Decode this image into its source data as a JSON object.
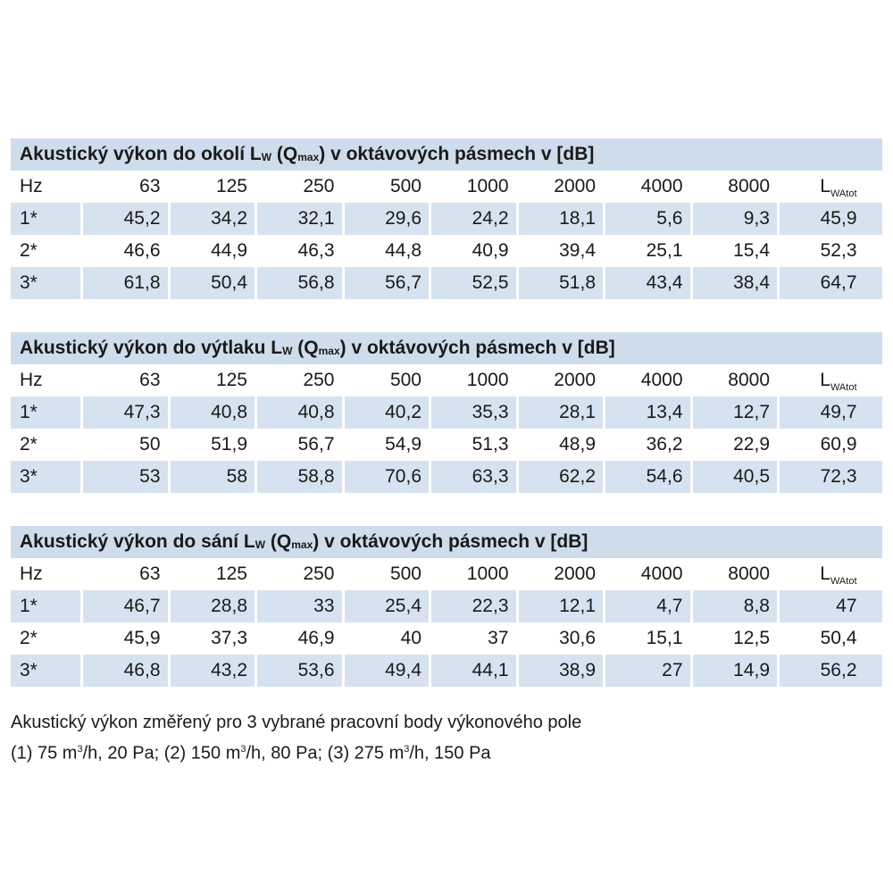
{
  "tables": [
    {
      "title_pre": "Akustický výkon do okolí L",
      "title_sub1": "W",
      "title_mid": " (Q",
      "title_sub2": "max",
      "title_post": ") v oktávových pásmech v [dB]",
      "header": [
        "Hz",
        "63",
        "125",
        "250",
        "500",
        "1000",
        "2000",
        "4000",
        "8000"
      ],
      "header_last_main": "L",
      "header_last_sub": "WAtot",
      "rows": [
        [
          "1*",
          "45,2",
          "34,2",
          "32,1",
          "29,6",
          "24,2",
          "18,1",
          "5,6",
          "9,3",
          "45,9"
        ],
        [
          "2*",
          "46,6",
          "44,9",
          "46,3",
          "44,8",
          "40,9",
          "39,4",
          "25,1",
          "15,4",
          "52,3"
        ],
        [
          "3*",
          "61,8",
          "50,4",
          "56,8",
          "56,7",
          "52,5",
          "51,8",
          "43,4",
          "38,4",
          "64,7"
        ]
      ]
    },
    {
      "title_pre": "Akustický výkon do výtlaku L",
      "title_sub1": "W",
      "title_mid": " (Q",
      "title_sub2": "max",
      "title_post": ") v oktávových pásmech v [dB]",
      "header": [
        "Hz",
        "63",
        "125",
        "250",
        "500",
        "1000",
        "2000",
        "4000",
        "8000"
      ],
      "header_last_main": "L",
      "header_last_sub": "WAtot",
      "rows": [
        [
          "1*",
          "47,3",
          "40,8",
          "40,8",
          "40,2",
          "35,3",
          "28,1",
          "13,4",
          "12,7",
          "49,7"
        ],
        [
          "2*",
          "50",
          "51,9",
          "56,7",
          "54,9",
          "51,3",
          "48,9",
          "36,2",
          "22,9",
          "60,9"
        ],
        [
          "3*",
          "53",
          "58",
          "58,8",
          "70,6",
          "63,3",
          "62,2",
          "54,6",
          "40,5",
          "72,3"
        ]
      ]
    },
    {
      "title_pre": "Akustický výkon do sání L",
      "title_sub1": "W",
      "title_mid": " (Q",
      "title_sub2": "max",
      "title_post": ") v oktávových pásmech v [dB]",
      "header": [
        "Hz",
        "63",
        "125",
        "250",
        "500",
        "1000",
        "2000",
        "4000",
        "8000"
      ],
      "header_last_main": "L",
      "header_last_sub": "WAtot",
      "rows": [
        [
          "1*",
          "46,7",
          "28,8",
          "33",
          "25,4",
          "22,3",
          "12,1",
          "4,7",
          "8,8",
          "47"
        ],
        [
          "2*",
          "45,9",
          "37,3",
          "46,9",
          "40",
          "37",
          "30,6",
          "15,1",
          "12,5",
          "50,4"
        ],
        [
          "3*",
          "46,8",
          "43,2",
          "53,6",
          "49,4",
          "44,1",
          "38,9",
          "27",
          "14,9",
          "56,2"
        ]
      ]
    }
  ],
  "note": {
    "line1": "Akustický výkon změřený pro 3 vybrané pracovní body výkonového pole",
    "p1_pre": "(1) 75 m",
    "p1_sup": "3",
    "p1_post": "/h, 20 Pa; (2) 150 m",
    "p2_sup": "3",
    "p2_post": "/h, 80 Pa; (3) 275 m",
    "p3_sup": "3",
    "p3_post": "/h, 150 Pa"
  }
}
